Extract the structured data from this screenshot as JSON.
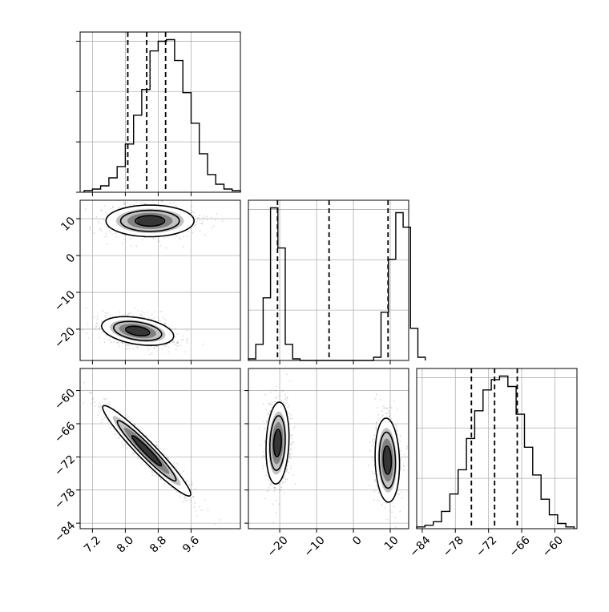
{
  "chart_data": {
    "type": "corner",
    "parameters": [
      {
        "name": "",
        "range": [
          6.9,
          10.8
        ],
        "ticks": [
          7.2,
          8.0,
          8.8,
          9.6
        ],
        "tick_labels": [
          "7.2",
          "8.0",
          "8.8",
          "9.6"
        ],
        "quantiles": [
          8.06,
          8.52,
          8.98
        ]
      },
      {
        "name": "",
        "range": [
          -28.5,
          15
        ],
        "ticks": [
          -20,
          -10,
          0,
          10
        ],
        "tick_labels": [
          "−20",
          "−10",
          "0",
          "10"
        ],
        "quantiles": [
          -20.6,
          -6.6,
          9.4
        ]
      },
      {
        "name": "",
        "range": [
          -85,
          -56
        ],
        "ticks": [
          -84,
          -78,
          -72,
          -66,
          -60
        ],
        "tick_labels": [
          "−84",
          "−78",
          "−72",
          "−66",
          "−60"
        ],
        "quantiles": [
          -75.1,
          -70.9,
          -66.8
        ]
      }
    ],
    "row_tick_labels": {
      "p1": [
        "10",
        "0",
        "−10",
        "−20"
      ],
      "p2": [
        "−60",
        "−66",
        "−72",
        "−78",
        "−84"
      ]
    },
    "histograms": [
      {
        "param": 0,
        "x_start": 7.0,
        "bin_width": 0.2,
        "values": [
          1,
          2,
          4,
          9,
          16,
          30,
          48,
          64,
          88,
          94,
          95,
          82,
          62,
          43,
          24,
          11,
          5,
          2,
          1
        ]
      },
      {
        "param": 1,
        "x_start": -28.5,
        "bin_width": 2.0,
        "values": [
          1,
          10,
          39,
          95,
          70,
          10,
          1,
          0,
          0,
          0,
          0,
          0,
          0,
          0,
          0,
          0,
          0,
          2,
          30,
          63,
          92,
          83,
          20,
          2
        ]
      },
      {
        "param": 2,
        "x_start": -85,
        "bin_width": 1.5,
        "values": [
          1,
          2,
          4,
          10,
          20,
          34,
          52,
          68,
          80,
          86,
          88,
          82,
          66,
          47,
          31,
          17,
          8,
          3,
          1
        ]
      }
    ],
    "clusters": [
      {
        "pair": [
          0,
          1
        ],
        "center": [
          8.6,
          9.4
        ],
        "sd": [
          0.55,
          2.2
        ],
        "rho": 0.0
      },
      {
        "pair": [
          0,
          1
        ],
        "center": [
          8.3,
          -20.5
        ],
        "sd": [
          0.45,
          2.0
        ],
        "rho": -0.35
      },
      {
        "pair": [
          0,
          2
        ],
        "center": [
          8.52,
          -70.9
        ],
        "sd": [
          0.55,
          4.2
        ],
        "rho": -0.96
      },
      {
        "pair": [
          1,
          2
        ],
        "center": [
          -20.6,
          -69.5
        ],
        "sd": [
          1.6,
          3.8
        ],
        "rho": 0.15
      },
      {
        "pair": [
          1,
          2
        ],
        "center": [
          9.2,
          -72.6
        ],
        "sd": [
          1.7,
          3.9
        ],
        "rho": -0.1
      }
    ],
    "contour_levels": [
      0.5,
      1.0,
      1.5
    ],
    "grid": true,
    "colors": {
      "ink": "#000000",
      "grid": "#b0b0b0",
      "scatter": "#555555",
      "fill": "#4a4a4a"
    }
  }
}
